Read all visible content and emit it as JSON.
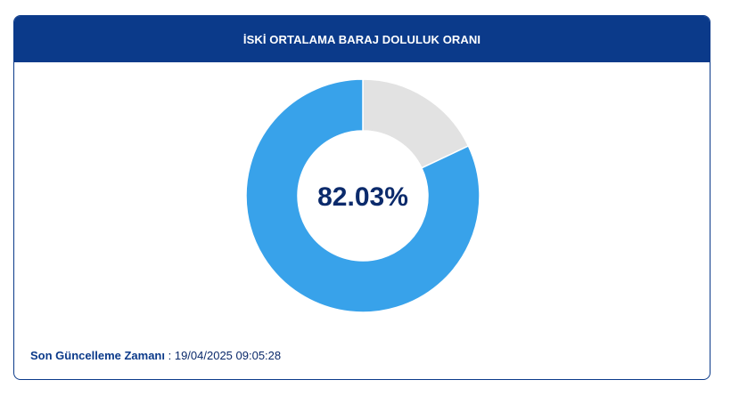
{
  "header": {
    "title": "İSKİ ORTALAMA BARAJ DOLULUK ORANI"
  },
  "chart_data": {
    "type": "pie",
    "variant": "donut",
    "slices": [
      {
        "value": 82.03,
        "color": "#38a2ea"
      },
      {
        "value": 17.97,
        "color": "#e2e2e2"
      }
    ],
    "center_label": "82.03%"
  },
  "footer": {
    "label": "Son Güncelleme Zamanı",
    "separator": " : ",
    "value": "19/04/2025 09:05:28"
  },
  "colors": {
    "header_bg": "#0b3a8a",
    "filled": "#38a2ea",
    "empty": "#e2e2e2"
  }
}
